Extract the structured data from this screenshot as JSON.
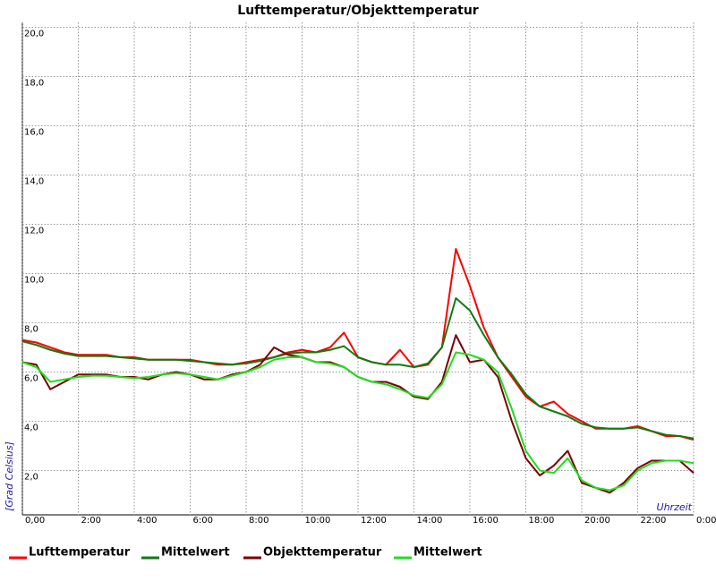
{
  "chart_data": {
    "type": "line",
    "title": "Lufttemperatur/Objekttemperatur",
    "y_label": "[Grad Celsius]",
    "x_label": "Uhrzeit",
    "x": [
      0,
      0.5,
      1,
      1.5,
      2,
      2.5,
      3,
      3.5,
      4,
      4.5,
      5,
      5.5,
      6,
      6.5,
      7,
      7.5,
      8,
      8.5,
      9,
      9.5,
      10,
      10.5,
      11,
      11.5,
      12,
      12.5,
      13,
      13.5,
      14,
      14.5,
      15,
      15.5,
      16,
      16.5,
      17,
      17.5,
      18,
      18.5,
      19,
      19.5,
      20,
      20.5,
      21,
      21.5,
      22,
      22.5,
      23,
      23.5,
      24
    ],
    "series": [
      {
        "name": "Lufttemperatur",
        "color": "#ff0000",
        "values": [
          7.3,
          7.2,
          7.0,
          6.8,
          6.7,
          6.7,
          6.7,
          6.6,
          6.6,
          6.5,
          6.5,
          6.5,
          6.5,
          6.4,
          6.3,
          6.3,
          6.4,
          6.5,
          6.6,
          6.8,
          6.9,
          6.8,
          7.0,
          7.6,
          6.6,
          6.4,
          6.3,
          6.9,
          6.2,
          6.3,
          7.0,
          11.0,
          9.5,
          7.8,
          6.6,
          5.8,
          5.0,
          4.6,
          4.8,
          4.3,
          4.0,
          3.7,
          3.7,
          3.7,
          3.8,
          3.6,
          3.4,
          3.4,
          3.25
        ]
      },
      {
        "name": "Mittelwert",
        "color": "#107a10",
        "values": [
          7.25,
          7.1,
          6.9,
          6.75,
          6.65,
          6.65,
          6.65,
          6.6,
          6.55,
          6.5,
          6.5,
          6.5,
          6.45,
          6.4,
          6.35,
          6.3,
          6.35,
          6.45,
          6.6,
          6.75,
          6.8,
          6.8,
          6.9,
          7.05,
          6.6,
          6.4,
          6.3,
          6.3,
          6.2,
          6.35,
          7.0,
          9.0,
          8.5,
          7.5,
          6.6,
          5.9,
          5.1,
          4.6,
          4.4,
          4.2,
          3.9,
          3.75,
          3.7,
          3.7,
          3.75,
          3.6,
          3.45,
          3.4,
          3.3
        ]
      },
      {
        "name": "Objekttemperatur",
        "color": "#7a0000",
        "values": [
          6.4,
          6.3,
          5.3,
          5.6,
          5.9,
          5.9,
          5.9,
          5.8,
          5.8,
          5.7,
          5.9,
          6.0,
          5.9,
          5.7,
          5.7,
          5.9,
          6.0,
          6.3,
          7.0,
          6.7,
          6.6,
          6.4,
          6.4,
          6.2,
          5.8,
          5.6,
          5.6,
          5.4,
          5.0,
          4.9,
          5.6,
          7.5,
          6.4,
          6.5,
          5.8,
          4.0,
          2.5,
          1.8,
          2.2,
          2.8,
          1.5,
          1.3,
          1.1,
          1.5,
          2.1,
          2.4,
          2.4,
          2.4,
          1.9
        ]
      },
      {
        "name": "Mittelwert",
        "color": "#22dd22",
        "values": [
          6.4,
          6.2,
          5.6,
          5.7,
          5.8,
          5.85,
          5.85,
          5.8,
          5.75,
          5.8,
          5.9,
          5.95,
          5.9,
          5.8,
          5.7,
          5.85,
          6.0,
          6.2,
          6.5,
          6.6,
          6.6,
          6.4,
          6.35,
          6.2,
          5.8,
          5.6,
          5.5,
          5.3,
          5.05,
          4.95,
          5.5,
          6.8,
          6.7,
          6.5,
          6.0,
          4.5,
          2.8,
          2.0,
          1.9,
          2.5,
          1.6,
          1.3,
          1.2,
          1.4,
          2.0,
          2.3,
          2.4,
          2.4,
          2.3
        ]
      }
    ],
    "xlim": [
      0,
      24
    ],
    "xticks": [
      {
        "value": 0,
        "label": "0,00"
      },
      {
        "value": 2,
        "label": "2:00"
      },
      {
        "value": 4,
        "label": "4:00"
      },
      {
        "value": 6,
        "label": "6:00"
      },
      {
        "value": 8,
        "label": "8:00"
      },
      {
        "value": 10,
        "label": "10:00"
      },
      {
        "value": 12,
        "label": "12:00"
      },
      {
        "value": 14,
        "label": "14:00"
      },
      {
        "value": 16,
        "label": "16:00"
      },
      {
        "value": 18,
        "label": "18:00"
      },
      {
        "value": 20,
        "label": "20:00"
      },
      {
        "value": 22,
        "label": "22:00"
      },
      {
        "value": 24,
        "label": "0:00"
      }
    ],
    "ylim": [
      0.2,
      20.2
    ],
    "yticks": [
      {
        "value": 2,
        "label": "2,0"
      },
      {
        "value": 4,
        "label": "4,0"
      },
      {
        "value": 6,
        "label": "6,0"
      },
      {
        "value": 8,
        "label": "8,0"
      },
      {
        "value": 10,
        "label": "10,0"
      },
      {
        "value": 12,
        "label": "12,0"
      },
      {
        "value": 14,
        "label": "14,0"
      },
      {
        "value": 16,
        "label": "16,0"
      },
      {
        "value": 18,
        "label": "18,0"
      },
      {
        "value": 20,
        "label": "20,0"
      }
    ],
    "grid": true
  }
}
